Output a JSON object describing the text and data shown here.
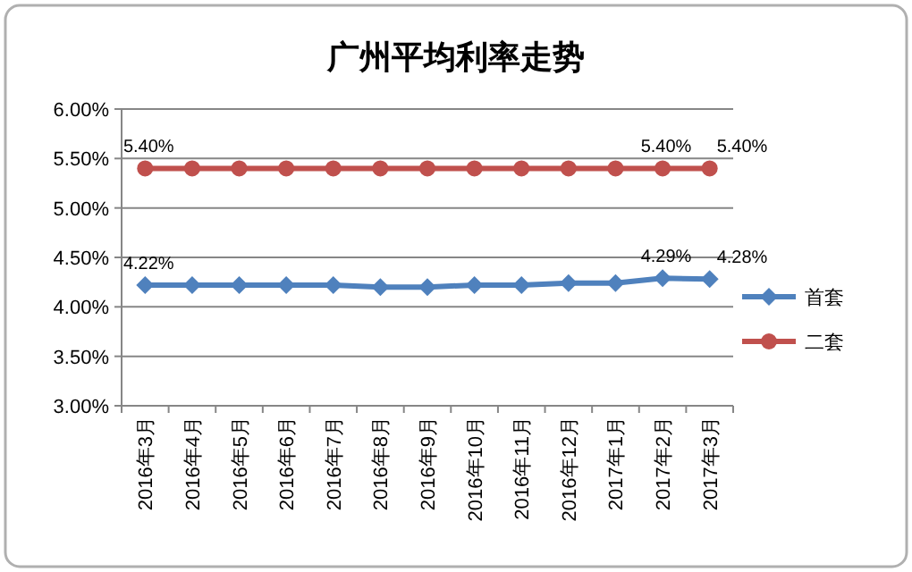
{
  "chart_data": {
    "type": "line",
    "title": "广州平均利率走势",
    "categories": [
      "2016年3月",
      "2016年4月",
      "2016年5月",
      "2016年6月",
      "2016年7月",
      "2016年8月",
      "2016年9月",
      "2016年10月",
      "2016年11月",
      "2016年12月",
      "2017年1月",
      "2017年2月",
      "2017年3月"
    ],
    "series": [
      {
        "name": "首套",
        "color": "#4f81bd",
        "marker": "diamond",
        "values": [
          4.22,
          4.22,
          4.22,
          4.22,
          4.22,
          4.2,
          4.2,
          4.22,
          4.22,
          4.24,
          4.24,
          4.29,
          4.28
        ],
        "value_labels": [
          "4.22%",
          null,
          null,
          null,
          null,
          null,
          null,
          null,
          null,
          null,
          null,
          "4.29%",
          "4.28%"
        ]
      },
      {
        "name": "二套",
        "color": "#c0504d",
        "marker": "circle",
        "values": [
          5.4,
          5.4,
          5.4,
          5.4,
          5.4,
          5.4,
          5.4,
          5.4,
          5.4,
          5.4,
          5.4,
          5.4,
          5.4
        ],
        "value_labels": [
          "5.40%",
          null,
          null,
          null,
          null,
          null,
          null,
          null,
          null,
          null,
          null,
          "5.40%",
          "5.40%"
        ]
      }
    ],
    "ylim": [
      3,
      6
    ],
    "yticks": [
      {
        "value": 3,
        "label": "3.00%"
      },
      {
        "value": 3.5,
        "label": "3.50%"
      },
      {
        "value": 4,
        "label": "4.00%"
      },
      {
        "value": 4.5,
        "label": "4.50%"
      },
      {
        "value": 5,
        "label": "5.00%"
      },
      {
        "value": 5.5,
        "label": "5.50%"
      },
      {
        "value": 6,
        "label": "6.00%"
      }
    ],
    "grid": "y",
    "legend": "right"
  }
}
